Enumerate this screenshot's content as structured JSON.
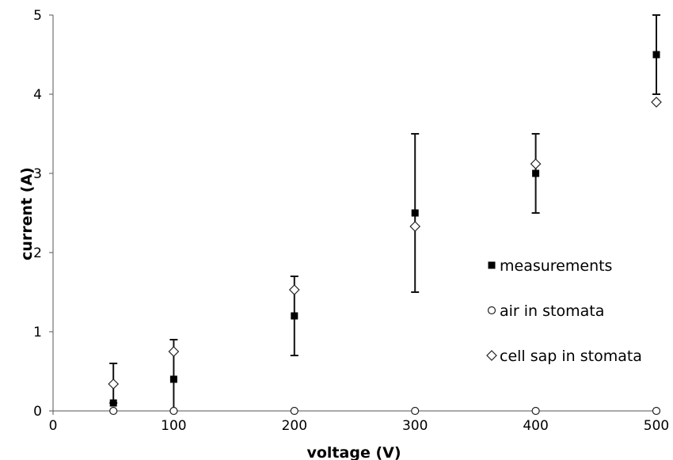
{
  "chart_data": {
    "type": "scatter",
    "title": "",
    "xlabel": "voltage (V)",
    "ylabel": "current (A)",
    "xlim": [
      0,
      500
    ],
    "ylim": [
      0,
      5
    ],
    "x_ticks": [
      "0",
      "100",
      "200",
      "300",
      "400",
      "500"
    ],
    "y_ticks": [
      "0",
      "1",
      "2",
      "3",
      "4",
      "5"
    ],
    "grid": false,
    "legend_position": "right",
    "series": [
      {
        "name": "measurements",
        "marker": "filled-square",
        "points": [
          {
            "x": 50,
            "y": 0.1,
            "err_low": 0.1,
            "err_high": 0.6
          },
          {
            "x": 100,
            "y": 0.4,
            "err_low": 0.0,
            "err_high": 0.9
          },
          {
            "x": 200,
            "y": 1.2,
            "err_low": 0.7,
            "err_high": 1.7
          },
          {
            "x": 300,
            "y": 2.5,
            "err_low": 1.5,
            "err_high": 3.5
          },
          {
            "x": 400,
            "y": 3.0,
            "err_low": 2.5,
            "err_high": 3.5
          },
          {
            "x": 500,
            "y": 4.5,
            "err_low": 4.0,
            "err_high": 5.0
          }
        ]
      },
      {
        "name": "air in stomata",
        "marker": "open-circle",
        "points": [
          {
            "x": 50,
            "y": 0
          },
          {
            "x": 100,
            "y": 0
          },
          {
            "x": 200,
            "y": 0
          },
          {
            "x": 300,
            "y": 0
          },
          {
            "x": 400,
            "y": 0
          },
          {
            "x": 500,
            "y": 0
          }
        ]
      },
      {
        "name": "cell sap in stomata",
        "marker": "open-diamond",
        "points": [
          {
            "x": 50,
            "y": 0.34
          },
          {
            "x": 100,
            "y": 0.75
          },
          {
            "x": 200,
            "y": 1.53
          },
          {
            "x": 300,
            "y": 2.33
          },
          {
            "x": 400,
            "y": 3.12
          },
          {
            "x": 500,
            "y": 3.9
          }
        ]
      }
    ]
  }
}
